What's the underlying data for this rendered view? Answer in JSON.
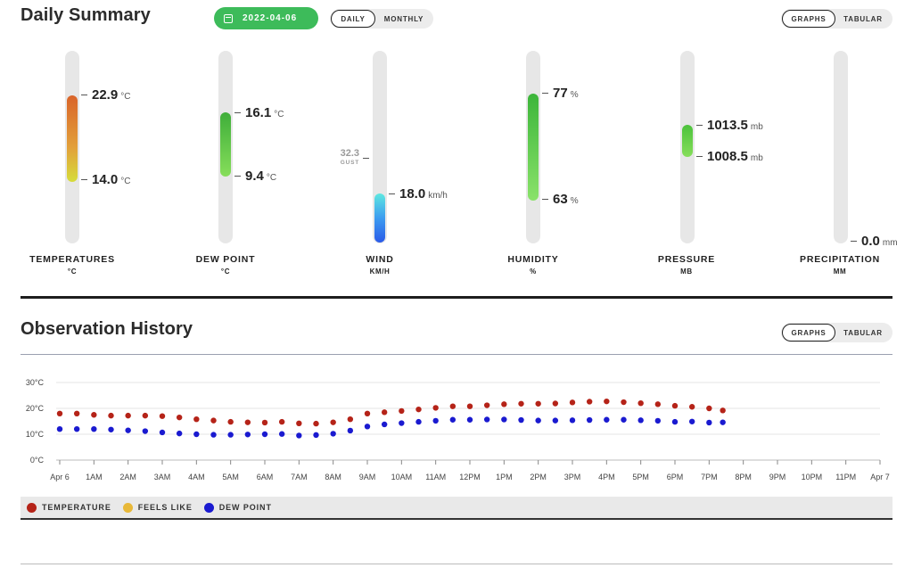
{
  "daily_summary": {
    "title": "Daily Summary",
    "date": "2022-04-06",
    "period_toggle": {
      "daily": "DAILY",
      "monthly": "MONTHLY",
      "selected": "DAILY"
    },
    "view_toggle": {
      "graphs": "GRAPHS",
      "tabular": "TABULAR",
      "selected": "GRAPHS"
    },
    "gauges": {
      "temperature": {
        "label": "TEMPERATURES",
        "unit_label": "°C",
        "high": "22.9",
        "low": "14.0",
        "unit": "°C"
      },
      "dew_point": {
        "label": "DEW POINT",
        "unit_label": "°C",
        "high": "16.1",
        "low": "9.4",
        "unit": "°C"
      },
      "wind": {
        "label": "WIND",
        "unit_label": "KM/H",
        "gust_value": "32.3",
        "gust_label": "GUST",
        "value": "18.0",
        "unit": "km/h"
      },
      "humidity": {
        "label": "HUMIDITY",
        "unit_label": "%",
        "high": "77",
        "low": "63",
        "unit": "%"
      },
      "pressure": {
        "label": "PRESSURE",
        "unit_label": "MB",
        "high": "1013.5",
        "low": "1008.5",
        "unit": "mb"
      },
      "precipitation": {
        "label": "PRECIPITATION",
        "unit_label": "MM",
        "value": "0.0",
        "unit": "mm"
      }
    }
  },
  "observation_history": {
    "title": "Observation History",
    "view_toggle": {
      "graphs": "GRAPHS",
      "tabular": "TABULAR",
      "selected": "GRAPHS"
    },
    "legend": [
      {
        "name": "TEMPERATURE",
        "color": "#b52318"
      },
      {
        "name": "FEELS LIKE",
        "color": "#e8b838"
      },
      {
        "name": "DEW POINT",
        "color": "#1a1ad0"
      }
    ]
  },
  "colors": {
    "accent_green": "#3dbb5a",
    "temperature": "#b52318",
    "dew_point": "#1a1ad0"
  },
  "chart_data": {
    "type": "scatter",
    "x_labels": [
      "Apr 6",
      "1AM",
      "2AM",
      "3AM",
      "4AM",
      "5AM",
      "6AM",
      "7AM",
      "8AM",
      "9AM",
      "10AM",
      "11AM",
      "12PM",
      "1PM",
      "2PM",
      "3PM",
      "4PM",
      "5PM",
      "6PM",
      "7PM",
      "8PM",
      "9PM",
      "10PM",
      "11PM",
      "Apr 7"
    ],
    "y_ticks": [
      "0°C",
      "10°C",
      "20°C",
      "30°C"
    ],
    "ylim": [
      0,
      30
    ],
    "xlim_hours": [
      0,
      24
    ],
    "grid": true,
    "series": [
      {
        "name": "TEMPERATURE",
        "color": "#b52318",
        "points": [
          [
            0,
            18.0
          ],
          [
            0.5,
            18.0
          ],
          [
            1,
            17.5
          ],
          [
            1.5,
            17.2
          ],
          [
            2,
            17.2
          ],
          [
            2.5,
            17.2
          ],
          [
            3,
            17.0
          ],
          [
            3.5,
            16.5
          ],
          [
            4,
            15.8
          ],
          [
            4.5,
            15.3
          ],
          [
            5,
            14.8
          ],
          [
            5.5,
            14.6
          ],
          [
            6,
            14.5
          ],
          [
            6.5,
            14.8
          ],
          [
            7,
            14.2
          ],
          [
            7.5,
            14.1
          ],
          [
            8,
            14.6
          ],
          [
            8.5,
            15.8
          ],
          [
            9,
            18.0
          ],
          [
            9.5,
            18.5
          ],
          [
            10,
            19.0
          ],
          [
            10.5,
            19.6
          ],
          [
            11,
            20.2
          ],
          [
            11.5,
            20.8
          ],
          [
            12,
            20.8
          ],
          [
            12.5,
            21.2
          ],
          [
            13,
            21.6
          ],
          [
            13.5,
            21.8
          ],
          [
            14,
            21.8
          ],
          [
            14.5,
            21.9
          ],
          [
            15,
            22.3
          ],
          [
            15.5,
            22.6
          ],
          [
            16,
            22.7
          ],
          [
            16.5,
            22.4
          ],
          [
            17,
            22.0
          ],
          [
            17.5,
            21.6
          ],
          [
            18,
            21.0
          ],
          [
            18.5,
            20.6
          ],
          [
            19,
            20.0
          ],
          [
            19.4,
            19.2
          ]
        ]
      },
      {
        "name": "DEW POINT",
        "color": "#1a1ad0",
        "points": [
          [
            0,
            12.0
          ],
          [
            0.5,
            12.0
          ],
          [
            1,
            12.0
          ],
          [
            1.5,
            11.8
          ],
          [
            2,
            11.5
          ],
          [
            2.5,
            11.2
          ],
          [
            3,
            10.7
          ],
          [
            3.5,
            10.3
          ],
          [
            4,
            10.0
          ],
          [
            4.5,
            9.8
          ],
          [
            5,
            9.8
          ],
          [
            5.5,
            9.9
          ],
          [
            6,
            10.0
          ],
          [
            6.5,
            10.1
          ],
          [
            7,
            9.5
          ],
          [
            7.5,
            9.7
          ],
          [
            8,
            10.2
          ],
          [
            8.5,
            11.4
          ],
          [
            9,
            13.0
          ],
          [
            9.5,
            13.8
          ],
          [
            10,
            14.3
          ],
          [
            10.5,
            14.8
          ],
          [
            11,
            15.2
          ],
          [
            11.5,
            15.6
          ],
          [
            12,
            15.6
          ],
          [
            12.5,
            15.7
          ],
          [
            13,
            15.7
          ],
          [
            13.5,
            15.5
          ],
          [
            14,
            15.3
          ],
          [
            14.5,
            15.3
          ],
          [
            15,
            15.4
          ],
          [
            15.5,
            15.5
          ],
          [
            16,
            15.6
          ],
          [
            16.5,
            15.6
          ],
          [
            17,
            15.4
          ],
          [
            17.5,
            15.2
          ],
          [
            18,
            14.8
          ],
          [
            18.5,
            14.9
          ],
          [
            19,
            14.5
          ],
          [
            19.4,
            14.6
          ]
        ]
      }
    ]
  }
}
